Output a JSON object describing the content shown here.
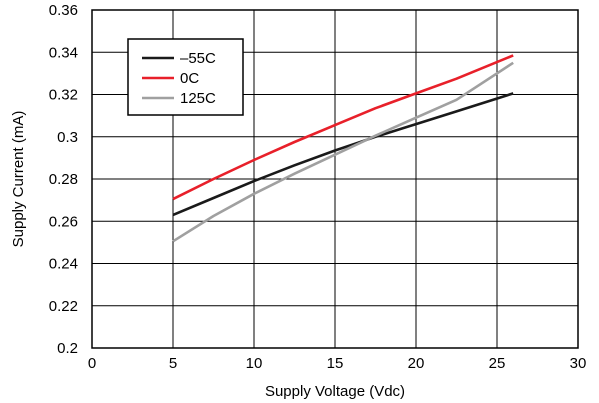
{
  "chart_data": {
    "type": "line",
    "xlabel": "Supply Voltage (Vdc)",
    "ylabel": "Supply Current (mA)",
    "xlim": [
      0,
      30
    ],
    "ylim": [
      0.2,
      0.36
    ],
    "x_ticks": [
      0,
      5,
      10,
      15,
      20,
      25,
      30
    ],
    "y_ticks": [
      0.2,
      0.22,
      0.24,
      0.26,
      0.28,
      0.3,
      0.32,
      0.34,
      0.36
    ],
    "x_tick_labels": [
      "0",
      "5",
      "10",
      "15",
      "20",
      "25",
      "30"
    ],
    "y_tick_labels": [
      "0.2",
      "0.22",
      "0.24",
      "0.26",
      "0.28",
      "0.3",
      "0.32",
      "0.34",
      "0.36"
    ],
    "grid": true,
    "legend_position": "top-left",
    "series": [
      {
        "name": "–55C",
        "color": "#1a1a1a",
        "x": [
          5,
          7.5,
          10,
          12.5,
          15,
          17.5,
          20,
          22.5,
          26
        ],
        "y": [
          0.263,
          0.271,
          0.279,
          0.2865,
          0.2935,
          0.3,
          0.306,
          0.312,
          0.3205
        ]
      },
      {
        "name": "0C",
        "color": "#e8202a",
        "x": [
          5,
          7.5,
          10,
          12.5,
          15,
          17.5,
          20,
          22.5,
          26
        ],
        "y": [
          0.2705,
          0.28,
          0.289,
          0.2975,
          0.3055,
          0.3135,
          0.3205,
          0.3275,
          0.3385
        ]
      },
      {
        "name": "125C",
        "color": "#a0a0a0",
        "x": [
          5,
          7.5,
          10,
          12.5,
          15,
          17.5,
          20,
          22.5,
          26
        ],
        "y": [
          0.2505,
          0.2625,
          0.273,
          0.2825,
          0.2915,
          0.3005,
          0.309,
          0.3175,
          0.335
        ]
      }
    ]
  }
}
